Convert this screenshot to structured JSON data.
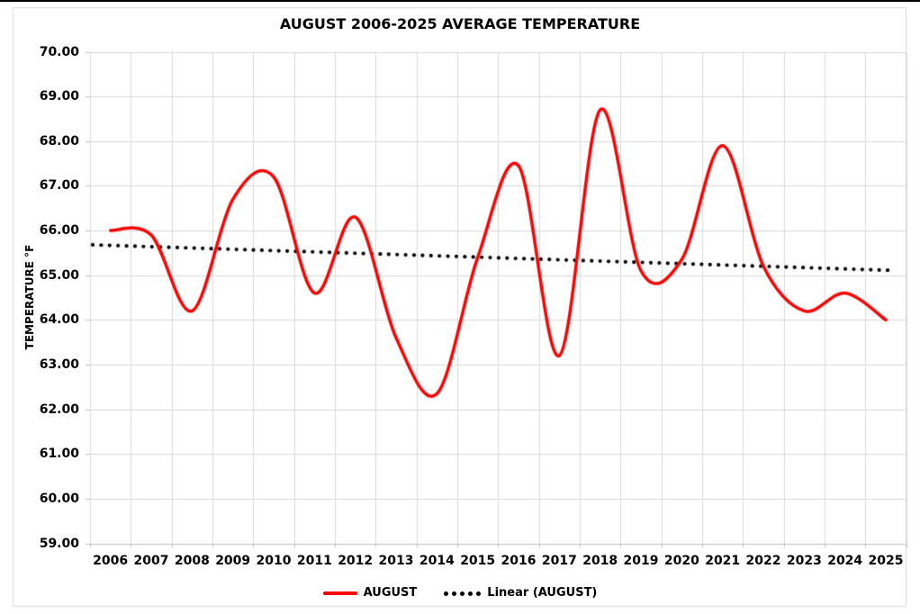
{
  "window": {
    "top_border_color": "#000000",
    "chart_border_color": "#D9D9D9",
    "background_color": "#FFFFFF"
  },
  "chart_data": {
    "type": "line",
    "title": "AUGUST 2006-2025 AVERAGE TEMPERATURE",
    "xlabel": "",
    "ylabel": "TEMPERATURE °F",
    "categories": [
      "2006",
      "2007",
      "2008",
      "2009",
      "2010",
      "2011",
      "2012",
      "2013",
      "2014",
      "2015",
      "2016",
      "2017",
      "2018",
      "2019",
      "2020",
      "2021",
      "2022",
      "2023",
      "2024",
      "2025"
    ],
    "y_ticks": [
      "70.00",
      "69.00",
      "68.00",
      "67.00",
      "66.00",
      "65.00",
      "64.00",
      "63.00",
      "62.00",
      "61.00",
      "60.00",
      "59.00"
    ],
    "ylim": [
      59,
      70
    ],
    "ytick_step": 1,
    "grid": true,
    "smooth": true,
    "legend_position": "bottom",
    "gridline_color": "#D9D9D9",
    "axis_line_color": "#BFBFBF",
    "series": [
      {
        "name": "AUGUST",
        "type": "line",
        "style": "solid",
        "color": "#FF0000",
        "values": [
          66.0,
          65.9,
          64.2,
          66.7,
          67.2,
          64.6,
          66.3,
          63.6,
          62.35,
          65.4,
          67.45,
          63.2,
          68.7,
          65.1,
          65.35,
          67.9,
          65.2,
          64.2,
          64.6,
          64.0
        ]
      },
      {
        "name": "Linear (AUGUST)",
        "type": "trendline",
        "style": "dotted",
        "color": "#000000",
        "endpoints": [
          65.68,
          65.11
        ]
      }
    ]
  }
}
